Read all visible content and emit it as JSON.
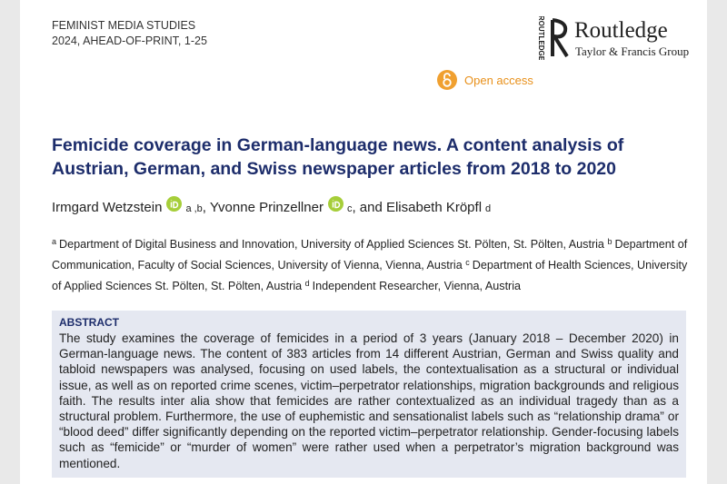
{
  "header": {
    "journal": "FEMINIST MEDIA STUDIES",
    "issue": "2024, AHEAD-OF-PRINT, 1-25",
    "publisher_mark": "ROUTLEDGE",
    "publisher": "Routledge",
    "publisher_group": "Taylor & Francis Group",
    "open_access": "Open access"
  },
  "title": "Femicide coverage in German-language news. A content analysis of Austrian, German, and Swiss newspaper articles from 2018 to 2020",
  "authors": [
    {
      "name": "Irmgard Wetzstein",
      "affiliations": "a ,b",
      "orcid": true
    },
    {
      "name": ", Yvonne Prinzellner",
      "affiliations": "c",
      "orcid": true
    },
    {
      "name": ", and Elisabeth Kröpfl",
      "affiliations": "d",
      "orcid": false
    }
  ],
  "affiliations": [
    {
      "label": "a",
      "text": "Department of Digital Business and Innovation, University of Applied Sciences St. Pölten, St. Pölten, Austria"
    },
    {
      "label": "b",
      "text": "Department of Communication, Faculty of Social Sciences, University of Vienna, Vienna, Austria"
    },
    {
      "label": "c",
      "text": "Department of Health Sciences, University of Applied Sciences St. Pölten, St. Pölten, Austria"
    },
    {
      "label": "d",
      "text": "Independent Researcher, Vienna, Austria"
    }
  ],
  "abstract": {
    "heading": "ABSTRACT",
    "text": "The study examines the coverage of femicides in a period of 3 years (January 2018 – December 2020) in German-language news. The content of 383 articles from 14 different Austrian, German and Swiss quality and tabloid newspapers was analysed, focusing on used labels, the contextualisation as a structural or individual issue, as well as on reported crime scenes, victim–perpetrator relationships, migration backgrounds and religious faith. The results inter alia show that femicides are rather contextualized as an individual tragedy than as a structural problem. Furthermore, the use of euphemistic and sensationalist labels such as “relationship drama” or “blood deed” differ significantly depending on the reported victim–perpetrator relationship. Gender-focusing labels such as “femicide” or “murder of women” were rather used when a perpetrator’s migration background was mentioned."
  }
}
